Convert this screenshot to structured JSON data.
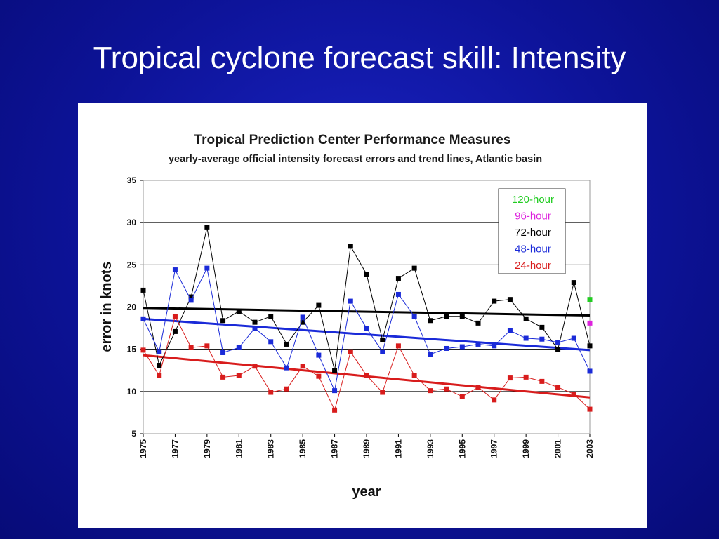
{
  "slide": {
    "title": "Tropical cyclone forecast skill: Intensity"
  },
  "colors": {
    "h120": "#22cc22",
    "h96": "#dd22dd",
    "h72": "#000000",
    "h48": "#1a2ad8",
    "h24": "#d81c1c"
  },
  "chart_data": {
    "type": "line",
    "title": "Tropical Prediction Center Performance Measures",
    "subtitle": "yearly-average official intensity forecast errors and trend lines, Atlantic basin",
    "xlabel": "year",
    "ylabel": "error in knots",
    "ylim": [
      5,
      35
    ],
    "xlim": [
      1975,
      2003
    ],
    "y_ticks": [
      "5",
      "10",
      "15",
      "20",
      "25",
      "30",
      "35"
    ],
    "x_ticks": [
      "1975",
      "1977",
      "1979",
      "1981",
      "1983",
      "1985",
      "1987",
      "1989",
      "1991",
      "1993",
      "1995",
      "1997",
      "1999",
      "2001",
      "2003"
    ],
    "grid": "horizontal",
    "legend_position": "top-right",
    "legend": [
      "120-hour",
      "96-hour",
      "72-hour",
      "48-hour",
      "24-hour"
    ],
    "series": [
      {
        "name": "120-hour",
        "color": "#22cc22",
        "x": [
          2003
        ],
        "values": [
          20.9
        ]
      },
      {
        "name": "96-hour",
        "color": "#dd22dd",
        "x": [
          2003
        ],
        "values": [
          18.1
        ]
      },
      {
        "name": "72-hour",
        "color": "#000000",
        "x": [
          1975,
          1976,
          1977,
          1978,
          1979,
          1980,
          1981,
          1982,
          1983,
          1984,
          1985,
          1986,
          1987,
          1988,
          1989,
          1990,
          1991,
          1992,
          1993,
          1994,
          1995,
          1996,
          1997,
          1998,
          1999,
          2000,
          2001,
          2002,
          2003
        ],
        "values": [
          22.0,
          13.1,
          17.1,
          21.2,
          29.4,
          18.4,
          19.5,
          18.2,
          18.9,
          15.6,
          18.2,
          20.2,
          12.5,
          27.2,
          23.9,
          16.1,
          23.4,
          24.6,
          18.4,
          18.9,
          18.9,
          18.1,
          20.7,
          20.9,
          18.6,
          17.6,
          15.0,
          22.9,
          15.4
        ],
        "trend": [
          19.9,
          19.0
        ]
      },
      {
        "name": "48-hour",
        "color": "#1a2ad8",
        "x": [
          1975,
          1976,
          1977,
          1978,
          1979,
          1980,
          1981,
          1982,
          1983,
          1984,
          1985,
          1986,
          1987,
          1988,
          1989,
          1990,
          1991,
          1992,
          1993,
          1994,
          1995,
          1996,
          1997,
          1998,
          1999,
          2000,
          2001,
          2002,
          2003
        ],
        "values": [
          18.6,
          14.7,
          24.4,
          20.8,
          24.6,
          14.6,
          15.2,
          17.5,
          15.9,
          12.8,
          18.8,
          14.3,
          10.1,
          20.7,
          17.5,
          14.7,
          21.5,
          18.9,
          14.4,
          15.1,
          15.3,
          15.6,
          15.4,
          17.2,
          16.3,
          16.2,
          15.8,
          16.3,
          12.4
        ],
        "trend": [
          18.6,
          14.9
        ]
      },
      {
        "name": "24-hour",
        "color": "#d81c1c",
        "x": [
          1975,
          1976,
          1977,
          1978,
          1979,
          1980,
          1981,
          1982,
          1983,
          1984,
          1985,
          1986,
          1987,
          1988,
          1989,
          1990,
          1991,
          1992,
          1993,
          1994,
          1995,
          1996,
          1997,
          1998,
          1999,
          2000,
          2001,
          2002,
          2003
        ],
        "values": [
          14.9,
          11.9,
          18.9,
          15.2,
          15.4,
          11.7,
          11.9,
          13.0,
          9.9,
          10.3,
          13.0,
          11.8,
          7.8,
          14.7,
          11.9,
          9.9,
          15.4,
          11.9,
          10.1,
          10.3,
          9.4,
          10.5,
          9.0,
          11.6,
          11.7,
          11.2,
          10.5,
          9.7,
          7.9
        ],
        "trend": [
          14.3,
          9.3
        ]
      }
    ]
  }
}
